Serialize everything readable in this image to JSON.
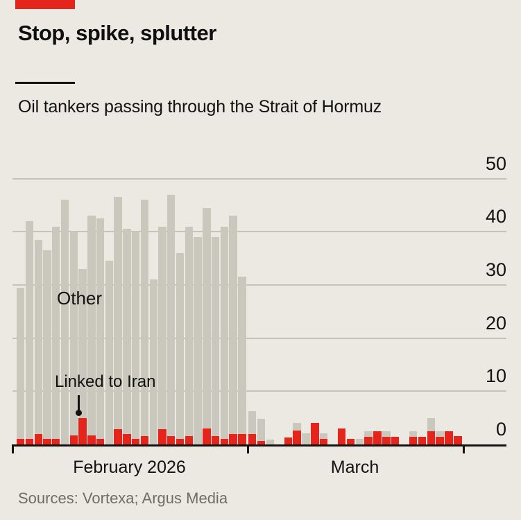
{
  "header": {
    "title": "Stop, spike, splutter",
    "subtitle": "Oil tankers passing through the Strait of Hormuz"
  },
  "annotations": {
    "other_label": "Other",
    "iran_label": "Linked to Iran"
  },
  "footer": {
    "sources": "Sources: Vortexa; Argus Media"
  },
  "colors": {
    "background": "#ebe9e1",
    "tag_red": "#e5241b",
    "bar_linked": "#e5241b",
    "bar_other": "#cac8bc",
    "gridline": "#c5c4bb",
    "axis": "#121212",
    "text": "#121212",
    "source_text": "#6f6e66"
  },
  "chart_data": {
    "type": "bar",
    "stacked": true,
    "title": "Oil tankers passing through the Strait of Hormuz",
    "ylabel": "",
    "xlabel": "",
    "ylim": [
      0,
      50
    ],
    "yticks": [
      0,
      10,
      20,
      30,
      40,
      50
    ],
    "y_axis_side": "right",
    "grid": true,
    "x_groups": [
      {
        "label": "February 2026",
        "days": 26
      },
      {
        "label": "March",
        "days": 24
      }
    ],
    "series": [
      {
        "name": "Linked to Iran",
        "color": "#e5241b",
        "values": [
          1,
          1,
          2,
          1,
          1,
          0,
          1.7,
          5,
          1.7,
          1,
          0,
          2.9,
          2,
          1,
          1.5,
          0,
          2.9,
          1.5,
          1,
          1.5,
          0,
          3,
          1.5,
          1,
          2,
          2,
          1.9,
          0.6,
          0,
          0,
          1.3,
          2.6,
          0,
          4,
          1,
          0,
          3,
          1.1,
          0,
          1.4,
          2.5,
          1.4,
          1.4,
          0,
          1.4,
          1.4,
          2.5,
          1.4,
          2.5,
          1.6
        ]
      },
      {
        "name": "Other",
        "color": "#cac8bc",
        "values": [
          28.5,
          41,
          36.5,
          35.5,
          40,
          46,
          38.3,
          28,
          41.3,
          41.5,
          34.5,
          43.6,
          38.5,
          39,
          44.5,
          31,
          38.1,
          45.5,
          35,
          39.5,
          39,
          41.5,
          37.5,
          40,
          41,
          29.5,
          4.4,
          4.2,
          0.9,
          0,
          0,
          1.4,
          2.1,
          0,
          1.1,
          0,
          0,
          0,
          1.1,
          1.1,
          0,
          1.1,
          0,
          0,
          1.1,
          0,
          2.5,
          1.1,
          0,
          0
        ]
      }
    ]
  }
}
